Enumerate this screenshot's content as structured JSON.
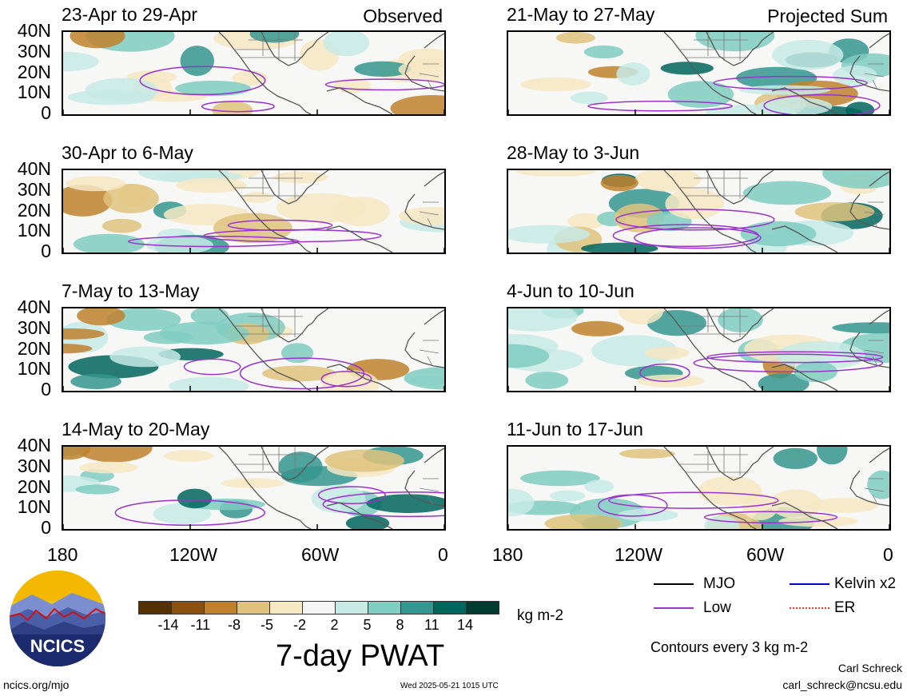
{
  "panels": {
    "observed": [
      {
        "title": "23-Apr to 29-Apr"
      },
      {
        "title": "30-Apr to 6-May"
      },
      {
        "title": "7-May to 13-May"
      },
      {
        "title": "14-May to 20-May"
      }
    ],
    "projected": [
      {
        "title": "21-May to 27-May"
      },
      {
        "title": "28-May to 3-Jun"
      },
      {
        "title": "4-Jun to 10-Jun"
      },
      {
        "title": "11-Jun to 17-Jun"
      }
    ],
    "observed_tag": "Observed",
    "projected_tag": "Projected Sum"
  },
  "lat_ticks": [
    "40N",
    "30N",
    "20N",
    "10N",
    "0"
  ],
  "lon_ticks": [
    "180",
    "120W",
    "60W",
    "0"
  ],
  "legend": {
    "entries": [
      {
        "label": "MJO",
        "color": "#000000"
      },
      {
        "label": "Kelvin x2",
        "color": "#0000cc"
      },
      {
        "label": "Low",
        "color": "#9933cc"
      },
      {
        "label": "ER",
        "color": "#ee3333"
      }
    ],
    "contour_note": "Contours every 3 kg m-2"
  },
  "colorbar": {
    "ticks": [
      "-14",
      "-11",
      "-8",
      "-5",
      "-2",
      "2",
      "5",
      "8",
      "11",
      "14"
    ],
    "colors": [
      "#543005",
      "#8c5110",
      "#bf812d",
      "#dfc27d",
      "#f6e8c3",
      "#f5f5f5",
      "#c7eae5",
      "#80cdc1",
      "#35978f",
      "#01665e",
      "#003c30"
    ],
    "units": "kg m-2",
    "title": "7-day PWAT"
  },
  "logo_text": "NCICS",
  "footer": {
    "url": "ncics.org/mjo",
    "timestamp": "Wed 2025-05-21 1015 UTC",
    "author": "Carl Schreck",
    "email": "carl_schreck@ncsu.edu"
  }
}
